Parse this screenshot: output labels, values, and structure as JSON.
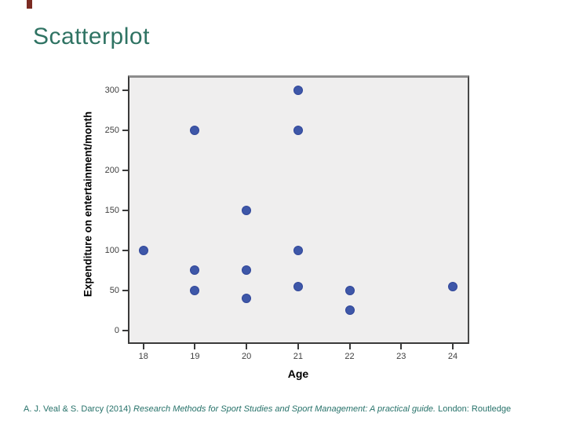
{
  "slide": {
    "title": "Scatterplot",
    "title_color": "#2f7363",
    "corner_marker_color": "#7b2b22",
    "citation": {
      "prefix": "A. J. Veal & S. Darcy (2014) ",
      "italic": "Research Methods for Sport Studies and Sport Management: A practical guide.",
      "suffix": " London: Routledge",
      "color": "#27726a"
    }
  },
  "chart_data": {
    "type": "scatter",
    "title": "",
    "xlabel": "Age",
    "ylabel": "Expenditure on entertainment/month",
    "x_ticks": [
      18,
      19,
      20,
      21,
      22,
      23,
      24
    ],
    "y_ticks": [
      0,
      50,
      100,
      150,
      200,
      250,
      300
    ],
    "xlim": [
      17.7,
      24.32
    ],
    "ylim": [
      -16.7,
      318.6
    ],
    "grid": false,
    "legend": false,
    "plot_bg": "#efeeee",
    "point_color": "#3e57a8",
    "points": [
      {
        "x": 18,
        "y": 100
      },
      {
        "x": 19,
        "y": 250
      },
      {
        "x": 19,
        "y": 75
      },
      {
        "x": 19,
        "y": 50
      },
      {
        "x": 20,
        "y": 150
      },
      {
        "x": 20,
        "y": 75
      },
      {
        "x": 20,
        "y": 40
      },
      {
        "x": 21,
        "y": 300
      },
      {
        "x": 21,
        "y": 250
      },
      {
        "x": 21,
        "y": 100
      },
      {
        "x": 21,
        "y": 55
      },
      {
        "x": 22,
        "y": 50
      },
      {
        "x": 22,
        "y": 25
      },
      {
        "x": 24,
        "y": 55
      }
    ]
  }
}
